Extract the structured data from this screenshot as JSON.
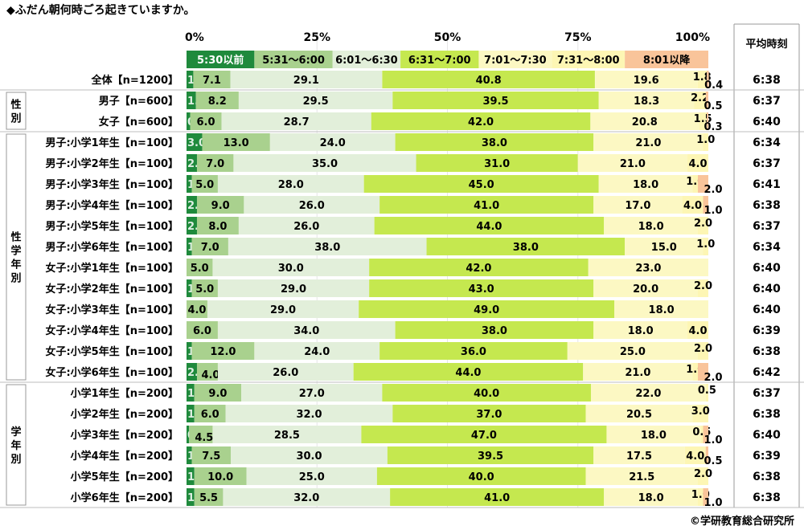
{
  "title": "◆ふだん朝何時ごろ起きていますか。",
  "copyright": "©学研教育総合研究所",
  "chart_data": {
    "type": "bar",
    "orientation": "horizontal",
    "stacked": "percent",
    "xlim": [
      0,
      100
    ],
    "xticks": [
      "0%",
      "25%",
      "50%",
      "75%",
      "100%"
    ],
    "avg_header": "平均時刻",
    "colors": [
      "#1f8a3c",
      "#a9d18e",
      "#e2efda",
      "#c5e84f",
      "#fcf8c3",
      "#fdf6b4",
      "#f9c49a"
    ],
    "categories_legend": [
      "5:30以前",
      "5:31～6:00",
      "6:01～6:30",
      "6:31～7:00",
      "7:01～7:30",
      "7:31～8:00",
      "8:01以降"
    ],
    "groups": [
      {
        "label": "",
        "start": 0,
        "end": 0
      },
      {
        "label": "性別",
        "start": 1,
        "end": 2
      },
      {
        "label": "性学年別",
        "start": 3,
        "end": 14
      },
      {
        "label": "学年別",
        "start": 15,
        "end": 20
      }
    ],
    "rows": [
      {
        "label": "全体【n=1200】",
        "values": [
          1.3,
          7.1,
          29.1,
          40.8,
          19.6,
          1.8,
          0.4
        ],
        "avg": "6:38"
      },
      {
        "label": "男子【n=600】",
        "values": [
          1.8,
          8.2,
          29.5,
          39.5,
          18.3,
          2.2,
          0.5
        ],
        "avg": "6:37"
      },
      {
        "label": "女子【n=600】",
        "values": [
          0.7,
          6.0,
          28.7,
          42.0,
          20.8,
          1.5,
          0.3
        ],
        "avg": "6:40"
      },
      {
        "label": "男子:小学1年生【n=100】",
        "values": [
          3.0,
          13.0,
          24.0,
          38.0,
          21.0,
          1.0,
          0
        ],
        "avg": "6:34"
      },
      {
        "label": "男子:小学2年生【n=100】",
        "values": [
          2.0,
          7.0,
          35.0,
          31.0,
          21.0,
          4.0,
          0
        ],
        "avg": "6:37"
      },
      {
        "label": "男子:小学3年生【n=100】",
        "values": [
          1.0,
          5.0,
          28.0,
          45.0,
          18.0,
          1.0,
          2.0
        ],
        "avg": "6:41"
      },
      {
        "label": "男子:小学4年生【n=100】",
        "values": [
          2.0,
          9.0,
          26.0,
          41.0,
          17.0,
          4.0,
          1.0
        ],
        "avg": "6:38"
      },
      {
        "label": "男子:小学5年生【n=100】",
        "values": [
          2.0,
          8.0,
          26.0,
          44.0,
          18.0,
          2.0,
          0
        ],
        "avg": "6:37"
      },
      {
        "label": "男子:小学6年生【n=100】",
        "values": [
          1.0,
          7.0,
          38.0,
          38.0,
          15.0,
          1.0,
          0
        ],
        "avg": "6:34"
      },
      {
        "label": "女子:小学1年生【n=100】",
        "values": [
          0,
          5.0,
          30.0,
          42.0,
          23.0,
          0,
          0
        ],
        "avg": "6:40"
      },
      {
        "label": "女子:小学2年生【n=100】",
        "values": [
          1.0,
          5.0,
          29.0,
          43.0,
          20.0,
          2.0,
          0
        ],
        "avg": "6:40"
      },
      {
        "label": "女子:小学3年生【n=100】",
        "values": [
          0,
          4.0,
          29.0,
          49.0,
          18.0,
          0,
          0
        ],
        "avg": "6:40"
      },
      {
        "label": "女子:小学4年生【n=100】",
        "values": [
          0,
          6.0,
          34.0,
          38.0,
          18.0,
          4.0,
          0
        ],
        "avg": "6:39"
      },
      {
        "label": "女子:小学5年生【n=100】",
        "values": [
          1.0,
          12.0,
          24.0,
          36.0,
          25.0,
          2.0,
          0
        ],
        "avg": "6:38"
      },
      {
        "label": "女子:小学6年生【n=100】",
        "values": [
          2.0,
          4.0,
          26.0,
          44.0,
          21.0,
          1.0,
          2.0
        ],
        "avg": "6:42"
      },
      {
        "label": "小学1年生【n=200】",
        "values": [
          1.5,
          9.0,
          27.0,
          40.0,
          22.0,
          0.5,
          0
        ],
        "avg": "6:37"
      },
      {
        "label": "小学2年生【n=200】",
        "values": [
          1.5,
          6.0,
          32.0,
          37.0,
          20.5,
          3.0,
          0
        ],
        "avg": "6:38"
      },
      {
        "label": "小学3年生【n=200】",
        "values": [
          0.5,
          4.5,
          28.5,
          47.0,
          18.0,
          0.5,
          1.0
        ],
        "avg": "6:40"
      },
      {
        "label": "小学4年生【n=200】",
        "values": [
          1.0,
          7.5,
          30.0,
          39.5,
          17.5,
          4.0,
          0.5
        ],
        "avg": "6:39"
      },
      {
        "label": "小学5年生【n=200】",
        "values": [
          1.5,
          10.0,
          25.0,
          40.0,
          21.5,
          2.0,
          0
        ],
        "avg": "6:38"
      },
      {
        "label": "小学6年生【n=200】",
        "values": [
          1.5,
          5.5,
          32.0,
          41.0,
          18.0,
          1.0,
          1.0
        ],
        "avg": "6:38"
      }
    ]
  }
}
